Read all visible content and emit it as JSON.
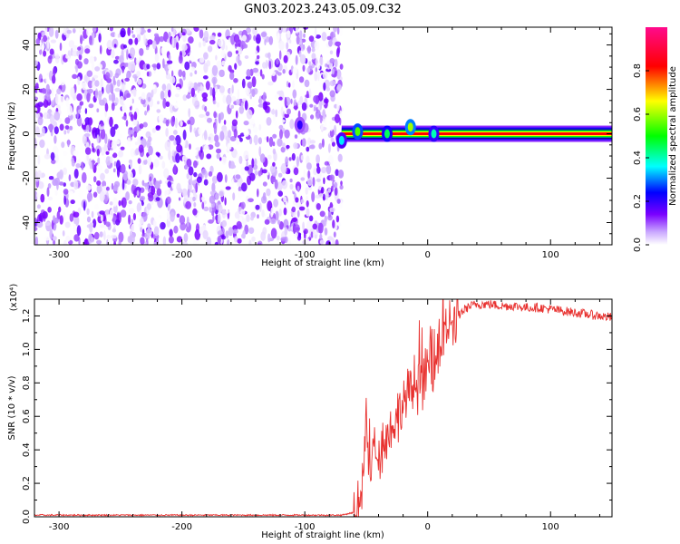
{
  "title": "GN03.2023.243.05.09.C32",
  "chart_data": [
    {
      "type": "heatmap",
      "xlabel": "Height of straight line (km)",
      "ylabel": "Frequency (Hz)",
      "xlim": [
        -320,
        150
      ],
      "ylim": [
        -50,
        48
      ],
      "xticks": [
        -300,
        -200,
        -100,
        0,
        100
      ],
      "yticks": [
        -40,
        -20,
        0,
        20,
        40
      ],
      "colorbar": {
        "label": "Normalized spectral amplitude",
        "range": [
          0,
          1
        ],
        "ticks": [
          "0.0",
          "0.2",
          "0.4",
          "0.6",
          "0.8"
        ],
        "colors": [
          "#ffffff",
          "#7a00ff",
          "#0000ff",
          "#00ffff",
          "#00ff00",
          "#ffff00",
          "#ff0000",
          "#ff00aa"
        ]
      },
      "noise_region": {
        "x_range": [
          -320,
          -70
        ],
        "freq_range": [
          -50,
          48
        ],
        "level": 0.15
      },
      "signal_band": {
        "x_range": [
          -70,
          150
        ],
        "frequency": 0,
        "level": 0.9
      },
      "features": [
        {
          "x": -70,
          "y": -3,
          "level": 0.35
        },
        {
          "x": -104,
          "y": 4,
          "level": 0.2
        },
        {
          "x": -57,
          "y": 1,
          "level": 0.55
        },
        {
          "x": -33,
          "y": 0,
          "level": 0.45
        },
        {
          "x": -14,
          "y": 3,
          "level": 0.6
        },
        {
          "x": 5,
          "y": 0,
          "level": 0.4
        }
      ]
    },
    {
      "type": "line",
      "xlabel": "Height of straight line (km)",
      "ylabel": "SNR (10 * v/v)",
      "y_multiplier": "(x10⁴)",
      "xlim": [
        -320,
        150
      ],
      "ylim": [
        0,
        1.3
      ],
      "xticks": [
        -300,
        -200,
        -100,
        0,
        100
      ],
      "yticks": [
        "0.0",
        "0.2",
        "0.4",
        "0.6",
        "0.8",
        "1.0",
        "1.2"
      ],
      "color": "#e8312f",
      "series": [
        {
          "x": [
            -320,
            -250,
            -180,
            -120,
            -70,
            -58,
            -55,
            -52,
            -50,
            -48,
            -46,
            -44,
            -40,
            -36,
            -32,
            -28,
            -24,
            -20,
            -16,
            -12,
            -8,
            -4,
            0,
            4,
            8,
            12,
            16,
            20,
            25,
            30,
            35,
            40,
            50,
            60,
            70,
            80,
            90,
            100,
            110,
            120,
            130,
            140,
            150
          ],
          "y": [
            0.01,
            0.01,
            0.01,
            0.01,
            0.01,
            0.03,
            0.12,
            0.3,
            0.55,
            0.35,
            0.3,
            0.42,
            0.38,
            0.46,
            0.5,
            0.55,
            0.6,
            0.68,
            0.73,
            0.78,
            0.8,
            0.84,
            0.88,
            0.9,
            0.98,
            1.05,
            1.12,
            1.15,
            1.2,
            1.24,
            1.26,
            1.27,
            1.27,
            1.26,
            1.26,
            1.25,
            1.25,
            1.24,
            1.23,
            1.22,
            1.21,
            1.2,
            1.19
          ]
        }
      ]
    }
  ]
}
